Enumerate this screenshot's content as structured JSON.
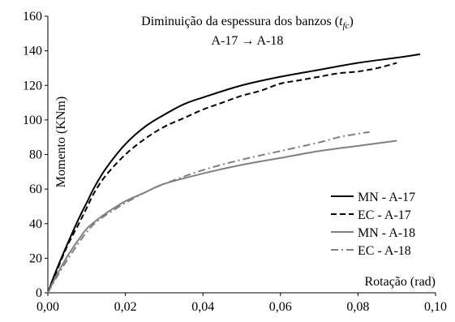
{
  "chart_data": {
    "type": "line",
    "title_line1": "Diminuição da espessura dos banzos (",
    "title_var": "t",
    "title_sub": "fc",
    "title_close": ")",
    "subtitle": "A-17 → A-18",
    "xlabel": "Rotação  (rad)",
    "ylabel": "Momento  (KNm)",
    "xlim": [
      0,
      0.1
    ],
    "ylim": [
      0,
      160
    ],
    "xticks": [
      0,
      0.02,
      0.04,
      0.06,
      0.08,
      0.1
    ],
    "xtick_labels": [
      "0,00",
      "0,02",
      "0,04",
      "0,06",
      "0,08",
      "0,10"
    ],
    "yticks": [
      0,
      20,
      40,
      60,
      80,
      100,
      120,
      140,
      160
    ],
    "ytick_labels": [
      "0",
      "20",
      "40",
      "60",
      "80",
      "100",
      "120",
      "140",
      "160"
    ],
    "grid": false,
    "legend_position": "right",
    "series": [
      {
        "name": "MN - A-17",
        "color": "#000000",
        "dash": "solid",
        "x": [
          0,
          0.002,
          0.005,
          0.008,
          0.01,
          0.012,
          0.015,
          0.02,
          0.025,
          0.03,
          0.035,
          0.04,
          0.05,
          0.06,
          0.07,
          0.08,
          0.09,
          0.096
        ],
        "y": [
          0,
          12,
          28,
          43,
          52,
          61,
          72,
          86,
          96,
          103,
          109,
          113,
          120,
          125,
          129,
          133,
          136,
          138
        ]
      },
      {
        "name": "EC - A-17",
        "color": "#000000",
        "dash": "dashed",
        "x": [
          0,
          0.002,
          0.005,
          0.008,
          0.01,
          0.012,
          0.015,
          0.02,
          0.025,
          0.03,
          0.035,
          0.04,
          0.045,
          0.05,
          0.055,
          0.06,
          0.065,
          0.07,
          0.075,
          0.08,
          0.085,
          0.09
        ],
        "y": [
          0,
          11,
          27,
          40,
          49,
          58,
          68,
          80,
          89,
          96,
          101,
          106,
          110,
          114,
          117,
          121,
          123,
          125,
          127,
          128,
          130,
          133
        ]
      },
      {
        "name": "MN - A-18",
        "color": "#808080",
        "dash": "solid",
        "x": [
          0,
          0.002,
          0.005,
          0.008,
          0.01,
          0.012,
          0.015,
          0.02,
          0.025,
          0.03,
          0.04,
          0.05,
          0.06,
          0.07,
          0.08,
          0.09
        ],
        "y": [
          0,
          9,
          21,
          31,
          37,
          41,
          46,
          53,
          58,
          63,
          69,
          74,
          78,
          82,
          85,
          88
        ]
      },
      {
        "name": "EC - A-18",
        "color": "#808080",
        "dash": "dashdot",
        "x": [
          0,
          0.002,
          0.005,
          0.008,
          0.01,
          0.012,
          0.015,
          0.02,
          0.025,
          0.03,
          0.04,
          0.05,
          0.06,
          0.07,
          0.075,
          0.08,
          0.083
        ],
        "y": [
          0,
          8,
          19,
          29,
          35,
          40,
          45,
          52,
          58,
          63,
          71,
          77,
          82,
          87,
          90,
          92,
          93
        ]
      }
    ]
  }
}
